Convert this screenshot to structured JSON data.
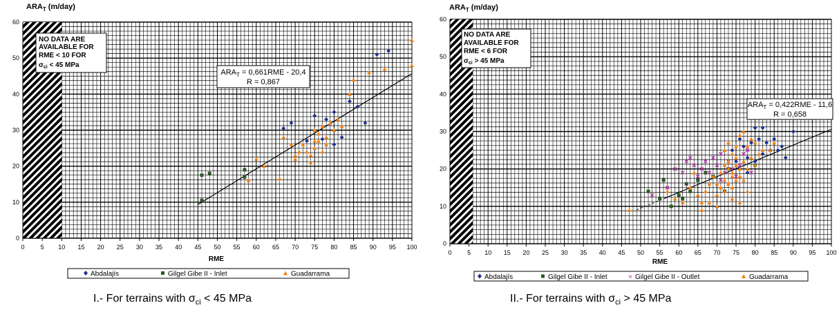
{
  "captions": [
    {
      "prefix": "I.- For terrains with ",
      "sigma": "σ",
      "sub": "ci",
      "suffix": " < 45 MPa"
    },
    {
      "prefix": "II.- For terrains with ",
      "sigma": "σ",
      "sub": "ci",
      "suffix": " > 45 MPa"
    }
  ],
  "chart_data": [
    {
      "type": "scatter",
      "ylabel": {
        "main": "ARA",
        "sub": "T",
        "unit": " (m/day)"
      },
      "xlabel": "RME",
      "xlim": [
        0,
        100
      ],
      "ylim": [
        0,
        60
      ],
      "xticks": [
        "0",
        "5",
        "10",
        "15",
        "20",
        "25",
        "30",
        "35",
        "40",
        "45",
        "50",
        "55",
        "60",
        "65",
        "70",
        "75",
        "80",
        "85",
        "90",
        "95",
        "100"
      ],
      "yticks": [
        "0",
        "10",
        "20",
        "30",
        "40",
        "50",
        "60"
      ],
      "hatch_xmax": 10,
      "grid": true,
      "legend_position": "bottom",
      "no_data_note": {
        "lines": [
          "NO DATA ARE",
          "AVAILABLE FOR",
          "RME < 10 FOR"
        ],
        "last": {
          "sigma": "σ",
          "sub": "ci",
          "rest": " < 45 MPa"
        }
      },
      "equation": {
        "lhs": "ARA",
        "sub": "T",
        "rhs": " = 0,661RME - 20,4",
        "r": "R = 0,867"
      },
      "trendline": {
        "slope": 0.661,
        "intercept": -20.4,
        "x_range": [
          45,
          100
        ]
      },
      "series": [
        {
          "name": "Abdalajís",
          "marker": "diamond",
          "color": "#1f2f8f",
          "points": [
            [
              67,
              30.5
            ],
            [
              69,
              32
            ],
            [
              73,
              27
            ],
            [
              75,
              34
            ],
            [
              77,
              27.5
            ],
            [
              78,
              33
            ],
            [
              80,
              35
            ],
            [
              80,
              26
            ],
            [
              82,
              28
            ],
            [
              84,
              38
            ],
            [
              86,
              36.5
            ],
            [
              88,
              32
            ],
            [
              91,
              51
            ],
            [
              94,
              52
            ]
          ]
        },
        {
          "name": "Gilgel Gibe II - Inlet",
          "marker": "square",
          "color": "#2d5a27",
          "points": [
            [
              46,
              17.5
            ],
            [
              46,
              10.5
            ],
            [
              48,
              18
            ],
            [
              57,
              19
            ],
            [
              57,
              17
            ]
          ]
        },
        {
          "name": "Guadarrama",
          "marker": "triangle",
          "color": "#f07f10",
          "points": [
            [
              58,
              16
            ],
            [
              60,
              22
            ],
            [
              62,
              20
            ],
            [
              66,
              16.5
            ],
            [
              67,
              28
            ],
            [
              69,
              26
            ],
            [
              70,
              23
            ],
            [
              70,
              22
            ],
            [
              71,
              24
            ],
            [
              72,
              26
            ],
            [
              73,
              24
            ],
            [
              74,
              23
            ],
            [
              74,
              21
            ],
            [
              75,
              25
            ],
            [
              75,
              27
            ],
            [
              75,
              30
            ],
            [
              76,
              27
            ],
            [
              76,
              29
            ],
            [
              77,
              31
            ],
            [
              77,
              24
            ],
            [
              78,
              28
            ],
            [
              78,
              26
            ],
            [
              79,
              32
            ],
            [
              80,
              30
            ],
            [
              81,
              33
            ],
            [
              82,
              31
            ],
            [
              84,
              40
            ],
            [
              85,
              44
            ],
            [
              89,
              46
            ],
            [
              93,
              47
            ],
            [
              100,
              48
            ],
            [
              100,
              55
            ]
          ]
        }
      ]
    },
    {
      "type": "scatter",
      "ylabel": {
        "main": "ARA",
        "sub": "T",
        "unit": " (m/day)"
      },
      "xlabel": "RME",
      "xlim": [
        0,
        100
      ],
      "ylim": [
        0,
        60
      ],
      "xticks": [
        "0",
        "5",
        "10",
        "15",
        "20",
        "25",
        "30",
        "35",
        "40",
        "45",
        "50",
        "55",
        "60",
        "65",
        "70",
        "75",
        "80",
        "85",
        "90",
        "95",
        "100"
      ],
      "yticks": [
        "0",
        "10",
        "20",
        "30",
        "40",
        "50",
        "60"
      ],
      "hatch_xmax": 6,
      "grid": true,
      "legend_position": "bottom",
      "no_data_note": {
        "lines": [
          "NO DATA ARE",
          "AVAILABLE FOR",
          "RME < 6 FOR"
        ],
        "last": {
          "sigma": "σ",
          "sub": "ci",
          "rest": " > 45 MPa"
        }
      },
      "equation": {
        "lhs": "ARA",
        "sub": "T",
        "rhs": " = 0,422RME - 11,6",
        "r": "R = 0,658"
      },
      "trendline": {
        "slope": 0.422,
        "intercept": -11.6,
        "x_range": [
          49,
          100
        ],
        "dashed_until": 56
      },
      "series": [
        {
          "name": "Abdalajís",
          "marker": "diamond",
          "color": "#1f2f8f",
          "points": [
            [
              74,
              25
            ],
            [
              75,
              22
            ],
            [
              76,
              28
            ],
            [
              77,
              26
            ],
            [
              78,
              23
            ],
            [
              79,
              27
            ],
            [
              80,
              31
            ],
            [
              80,
              22
            ],
            [
              81,
              28
            ],
            [
              82,
              31
            ],
            [
              82,
              24
            ],
            [
              83,
              27
            ],
            [
              84,
              25
            ],
            [
              85,
              28
            ],
            [
              86,
              25
            ],
            [
              87,
              26
            ],
            [
              88,
              23
            ],
            [
              90,
              30
            ],
            [
              76,
              20
            ],
            [
              78,
              19
            ]
          ]
        },
        {
          "name": "Gilgel Gibe II - Inlet",
          "marker": "square",
          "color": "#2d5a27",
          "points": [
            [
              52,
              14
            ],
            [
              55,
              12
            ],
            [
              56,
              17
            ],
            [
              58,
              10
            ],
            [
              60,
              13
            ],
            [
              61,
              12
            ],
            [
              62,
              16
            ],
            [
              63,
              14
            ],
            [
              65,
              17
            ],
            [
              67,
              19
            ],
            [
              69,
              18
            ],
            [
              72,
              14
            ],
            [
              73,
              20
            ],
            [
              80,
              21
            ]
          ]
        },
        {
          "name": "Gilgel Gibe II - Outlet",
          "marker": "x",
          "color": "#b02fa8",
          "points": [
            [
              53,
              13
            ],
            [
              57,
              15
            ],
            [
              59,
              20
            ],
            [
              61,
              19
            ],
            [
              62,
              22
            ],
            [
              63,
              23
            ],
            [
              64,
              21
            ],
            [
              65,
              18
            ],
            [
              66,
              20
            ],
            [
              67,
              22
            ],
            [
              68,
              19
            ],
            [
              69,
              23
            ],
            [
              70,
              21
            ],
            [
              71,
              17
            ],
            [
              71,
              24
            ],
            [
              72,
              19
            ],
            [
              73,
              22
            ],
            [
              74,
              20
            ],
            [
              75,
              18
            ],
            [
              76,
              21
            ],
            [
              77,
              24
            ],
            [
              78,
              25
            ],
            [
              79,
              19
            ]
          ]
        },
        {
          "name": "Guadarrama",
          "marker": "triangle",
          "color": "#f07f10",
          "points": [
            [
              47,
              9
            ],
            [
              57,
              14
            ],
            [
              59,
              12
            ],
            [
              61,
              11
            ],
            [
              63,
              15
            ],
            [
              64,
              19
            ],
            [
              65,
              13
            ],
            [
              66,
              11
            ],
            [
              67,
              14
            ],
            [
              68,
              16
            ],
            [
              69,
              18
            ],
            [
              70,
              16
            ],
            [
              70,
              13
            ],
            [
              71,
              15
            ],
            [
              71,
              19
            ],
            [
              72,
              21
            ],
            [
              72,
              17
            ],
            [
              72,
              14
            ],
            [
              73,
              20
            ],
            [
              73,
              16
            ],
            [
              73,
              22
            ],
            [
              74,
              18
            ],
            [
              74,
              15
            ],
            [
              74,
              24
            ],
            [
              74,
              19
            ],
            [
              75,
              21
            ],
            [
              75,
              17
            ],
            [
              75,
              26
            ],
            [
              75,
              23
            ],
            [
              76,
              18
            ],
            [
              76,
              20
            ],
            [
              77,
              22
            ],
            [
              77,
              17
            ],
            [
              78,
              26
            ],
            [
              78,
              20
            ],
            [
              79,
              28
            ],
            [
              79,
              23
            ],
            [
              80,
              27
            ],
            [
              80,
              21
            ],
            [
              81,
              24
            ],
            [
              76,
              29
            ],
            [
              77,
              30
            ],
            [
              73,
              27
            ],
            [
              72,
              25
            ],
            [
              78,
              14
            ],
            [
              74,
              12
            ],
            [
              76,
              11
            ],
            [
              66,
              9
            ],
            [
              68,
              11
            ],
            [
              82,
              25
            ],
            [
              84,
              25
            ],
            [
              85,
              27
            ],
            [
              70,
              10
            ]
          ]
        }
      ]
    }
  ]
}
